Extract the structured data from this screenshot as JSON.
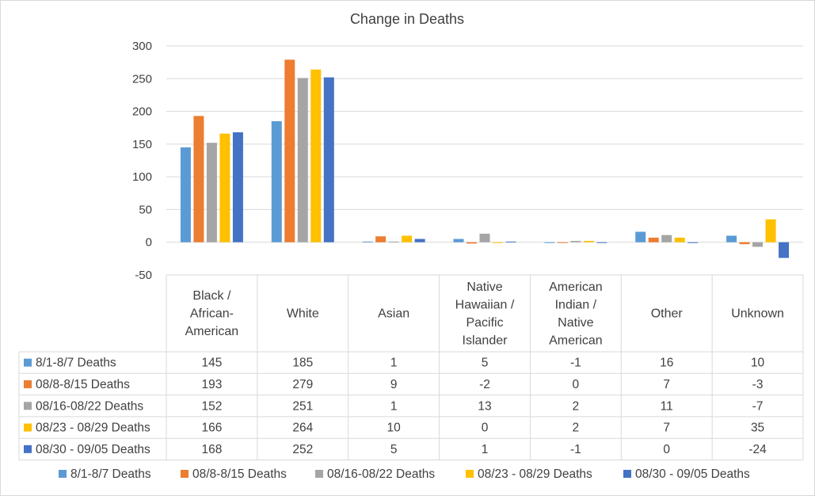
{
  "chart_data": {
    "type": "bar",
    "title": "Change in Deaths",
    "categories": [
      "Black / African-American",
      "White",
      "Asian",
      "Native Hawaiian / Pacific Islander",
      "American Indian / Native American",
      "Other",
      "Unknown"
    ],
    "category_lines": [
      [
        "Black /",
        "African-",
        "American"
      ],
      [
        "White"
      ],
      [
        "Asian"
      ],
      [
        "Native",
        "Hawaiian /",
        "Pacific",
        "Islander"
      ],
      [
        "American",
        "Indian /",
        "Native",
        "American"
      ],
      [
        "Other"
      ],
      [
        "Unknown"
      ]
    ],
    "series": [
      {
        "name": "8/1-8/7 Deaths",
        "color": "#5b9bd5",
        "values": [
          145,
          185,
          1,
          5,
          -1,
          16,
          10
        ]
      },
      {
        "name": "08/8-8/15 Deaths",
        "color": "#ed7d31",
        "values": [
          193,
          279,
          9,
          -2,
          0,
          7,
          -3
        ]
      },
      {
        "name": "08/16-08/22 Deaths",
        "color": "#a5a5a5",
        "values": [
          152,
          251,
          1,
          13,
          2,
          11,
          -7
        ]
      },
      {
        "name": "08/23 - 08/29 Deaths",
        "color": "#ffc000",
        "values": [
          166,
          264,
          10,
          0,
          2,
          7,
          35
        ]
      },
      {
        "name": "08/30 - 09/05 Deaths",
        "color": "#4472c4",
        "values": [
          168,
          252,
          5,
          1,
          -1,
          0,
          -24
        ]
      }
    ],
    "ylim": [
      -50,
      300
    ],
    "yticks": [
      -50,
      0,
      50,
      100,
      150,
      200,
      250,
      300
    ],
    "grid": true,
    "legend": "bottom",
    "data_table": true
  }
}
